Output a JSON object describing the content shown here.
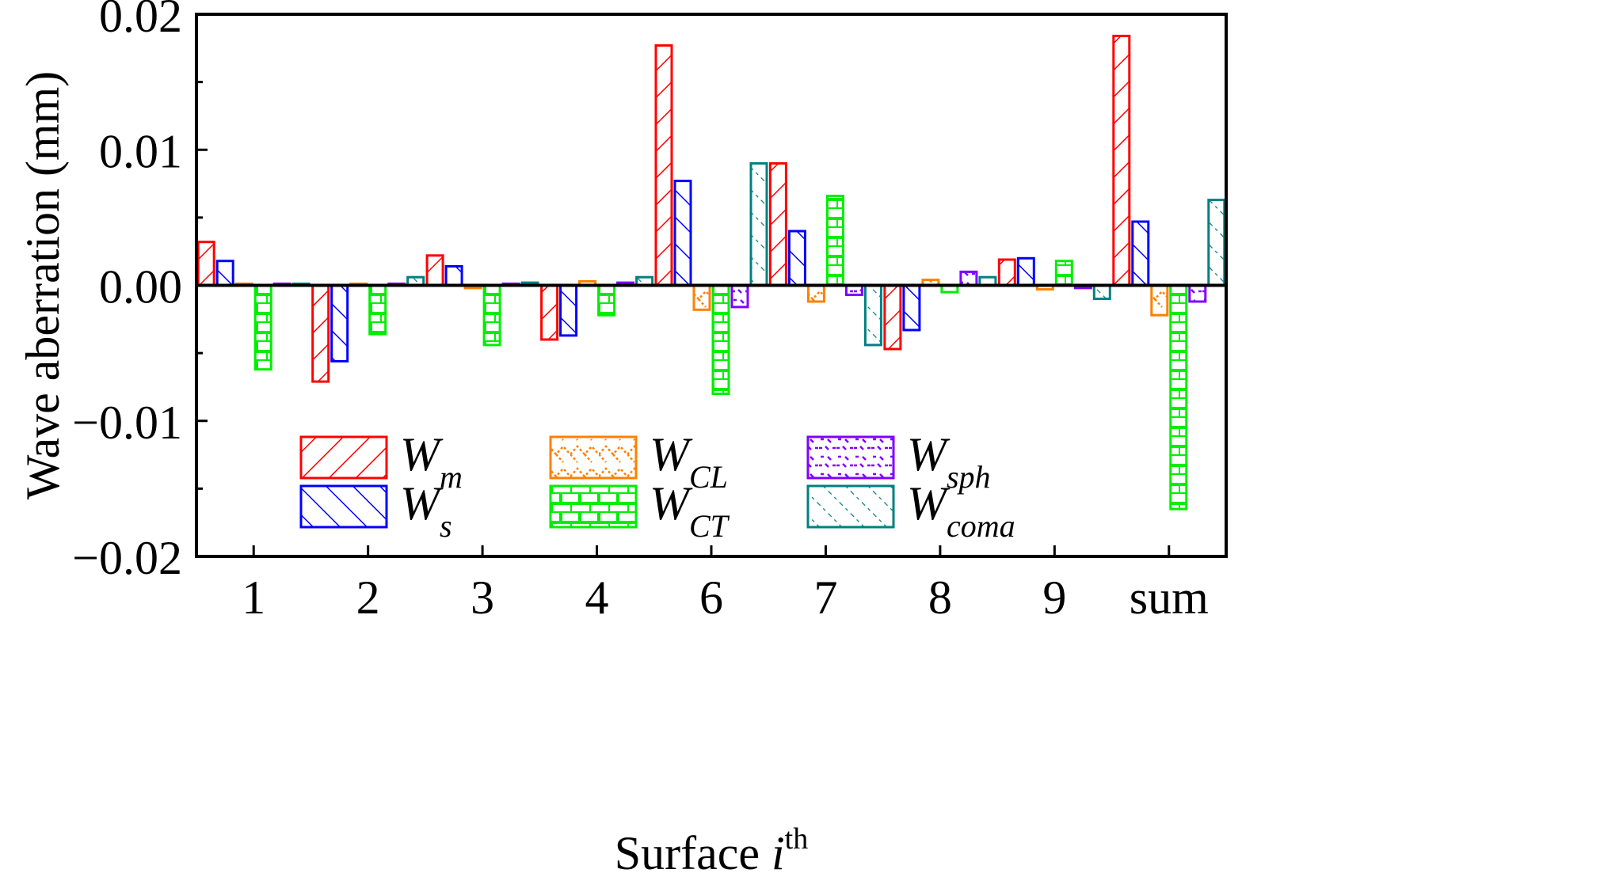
{
  "chart_data": {
    "type": "bar",
    "title": "",
    "xlabel": "Surface",
    "xlabel_var": "i",
    "xlabel_sup": "th",
    "ylabel": "Wave aberration (mm)",
    "ylim": [
      -0.02,
      0.02
    ],
    "yticks": [
      {
        "value": 0.02,
        "label": "0.02"
      },
      {
        "value": 0.01,
        "label": "0.01"
      },
      {
        "value": 0.0,
        "label": "0.00"
      },
      {
        "value": -0.01,
        "label": "−0.01"
      },
      {
        "value": -0.02,
        "label": "−0.02"
      }
    ],
    "categories": [
      "1",
      "2",
      "3",
      "4",
      "6",
      "7",
      "8",
      "9",
      "sum"
    ],
    "legend_position": "lower-center",
    "series": [
      {
        "key": "Wm",
        "name": "W",
        "sub": "m",
        "color": "#ff0000",
        "pattern": "hatch-forward",
        "values": [
          0.0032,
          -0.0071,
          0.0022,
          -0.004,
          0.0177,
          0.009,
          -0.0047,
          0.0019,
          0.0184
        ]
      },
      {
        "key": "Ws",
        "name": "W",
        "sub": "s",
        "color": "#0000ff",
        "pattern": "hatch-back",
        "values": [
          0.0018,
          -0.0056,
          0.0014,
          -0.0037,
          0.0077,
          0.004,
          -0.0033,
          0.002,
          0.0047
        ]
      },
      {
        "key": "WCL",
        "name": "W",
        "sub": "CL",
        "color": "#ff8000",
        "pattern": "lattice",
        "values": [
          0.0,
          0.0001,
          -0.0002,
          0.0003,
          -0.0018,
          -0.0012,
          0.0004,
          -0.0003,
          -0.0022
        ]
      },
      {
        "key": "WCT",
        "name": "W",
        "sub": "CT",
        "color": "#00ee00",
        "pattern": "brick",
        "values": [
          -0.0062,
          -0.0036,
          -0.0044,
          -0.0022,
          -0.008,
          0.0066,
          -0.0005,
          0.0018,
          -0.0165
        ]
      },
      {
        "key": "Wsph",
        "name": "W",
        "sub": "sph",
        "color": "#8000ff",
        "pattern": "dash-dots",
        "values": [
          0.0,
          0.0,
          0.0,
          0.0002,
          -0.0016,
          -0.0007,
          0.001,
          -0.0002,
          -0.0012
        ]
      },
      {
        "key": "Wcoma",
        "name": "W",
        "sub": "coma",
        "color": "#008080",
        "pattern": "dash-diag",
        "values": [
          0.0,
          0.0006,
          0.0002,
          0.0006,
          0.009,
          -0.0044,
          0.0006,
          -0.001,
          0.0063
        ]
      }
    ]
  }
}
